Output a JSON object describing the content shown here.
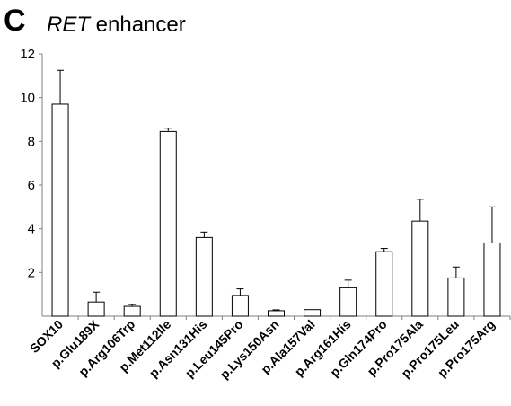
{
  "figure": {
    "panel_label": "C",
    "title_italic": "RET",
    "title_rest": "enhancer"
  },
  "chart_data": {
    "type": "bar",
    "title": "RET enhancer",
    "xlabel": "",
    "ylabel": "",
    "ylim": [
      0,
      12
    ],
    "yticks": [
      2,
      4,
      6,
      8,
      10,
      12
    ],
    "grid": false,
    "legend": "none",
    "categories": [
      "SOX10",
      "p.Glu189X",
      "p.Arg106Trp",
      "p.Met112Ile",
      "p.Asn131His",
      "p.Leu145Pro",
      "p.Lys150Asn",
      "p.Ala157Val",
      "p.Arg161His",
      "p.Gln174Pro",
      "p.Pro175Ala",
      "p.Pro175Leu",
      "p.Pro175Arg"
    ],
    "values": [
      9.7,
      0.65,
      0.45,
      8.45,
      3.6,
      0.95,
      0.25,
      0.3,
      1.3,
      2.95,
      4.35,
      1.75,
      3.35
    ],
    "error_upper": [
      1.55,
      0.45,
      0.08,
      0.15,
      0.25,
      0.3,
      0.04,
      0.0,
      0.35,
      0.15,
      1.0,
      0.5,
      1.65
    ],
    "colors": {
      "bar_fill": "#ffffff",
      "bar_stroke": "#000000",
      "axis": "#7f7f7f",
      "text": "#000000"
    }
  }
}
